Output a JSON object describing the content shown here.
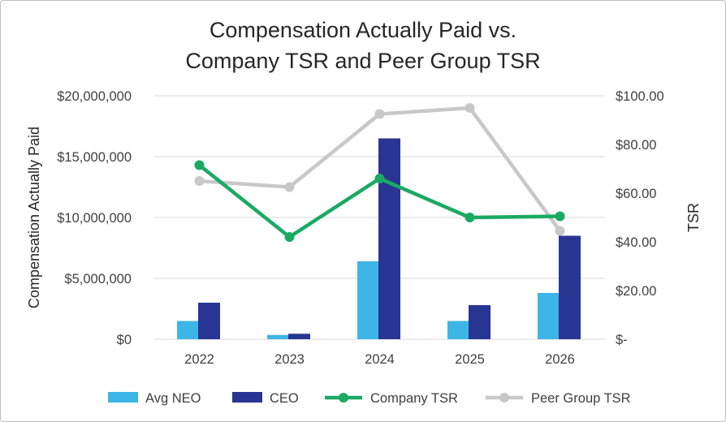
{
  "chart_data": {
    "type": "bar",
    "title_lines": [
      "Compensation Actually Paid vs.",
      "Company TSR and Peer Group TSR"
    ],
    "ylabel": "Compensation Actually Paid",
    "y2label": "TSR",
    "categories": [
      "2022",
      "2023",
      "2024",
      "2025",
      "2026"
    ],
    "y_ticks": [
      "$0",
      "$5,000,000",
      "$10,000,000",
      "$15,000,000",
      "$20,000,000"
    ],
    "y2_ticks": [
      "$-",
      "$20.00",
      "$40.00",
      "$60.00",
      "$80.00",
      "$100.00"
    ],
    "ylim": [
      0,
      20000000
    ],
    "y2lim": [
      0,
      100
    ],
    "bar_series": [
      {
        "name": "Avg NEO",
        "color": "#3db5e6",
        "values": [
          1500000,
          350000,
          6400000,
          1500000,
          3800000
        ]
      },
      {
        "name": "CEO",
        "color": "#283593",
        "values": [
          3000000,
          450000,
          16500000,
          2800000,
          8500000
        ]
      }
    ],
    "line_series": [
      {
        "name": "Company TSR",
        "color": "#1aaa63",
        "values": [
          71.5,
          42,
          66,
          50,
          50.5
        ]
      },
      {
        "name": "Peer Group TSR",
        "color": "#c8c8c8",
        "values": [
          65,
          62.5,
          92.5,
          95,
          44.5
        ]
      }
    ],
    "grid": true,
    "legend_position": "bottom"
  }
}
